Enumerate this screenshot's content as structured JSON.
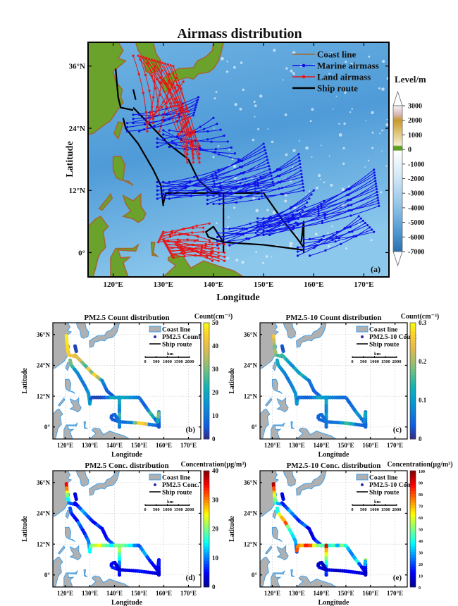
{
  "panel_a": {
    "title": "Airmass distribution",
    "xlabel": "Longitude",
    "ylabel": "Latitude",
    "label": "(a)",
    "x_ticks": [
      120,
      130,
      140,
      150,
      160,
      170
    ],
    "x_tick_labels": [
      "120°E",
      "130°E",
      "140°E",
      "150°E",
      "160°E",
      "170°E"
    ],
    "y_ticks": [
      36,
      24,
      12,
      0
    ],
    "y_tick_labels": [
      "36°N",
      "24°N",
      "12°N",
      "0°"
    ],
    "legend": [
      "Coast line",
      "Marine airmass",
      "Land airmass",
      "Ship route"
    ],
    "colorbar_title": "Level/m",
    "colorbar_ticks": [
      "3000",
      "2000",
      "1000",
      "0",
      "-1000",
      "-2000",
      "-3000",
      "-4000",
      "-5000",
      "-6000",
      "-7000"
    ],
    "colorbar_range": [
      -7000,
      3000
    ],
    "colors": {
      "marine": "#1010e8",
      "land": "#e81515",
      "route": "#000000",
      "coast": "#a0692e"
    },
    "airmass_bundles": [
      {
        "type": "marine",
        "from": [
          124,
          25
        ],
        "to": [
          [
            136,
            26.5
          ],
          [
            137,
            30
          ]
        ],
        "n": 8
      },
      {
        "type": "marine",
        "from": [
          130,
          22
        ],
        "to": [
          [
            140,
            26
          ],
          [
            145,
            18
          ]
        ],
        "n": 8
      },
      {
        "type": "marine",
        "from": [
          130,
          12
        ],
        "to": [
          [
            150,
            21
          ],
          [
            152,
            13
          ]
        ],
        "n": 14
      },
      {
        "type": "marine",
        "from": [
          140,
          11
        ],
        "to": [
          [
            157,
            19
          ],
          [
            158,
            12
          ]
        ],
        "n": 12
      },
      {
        "type": "marine",
        "from": [
          142,
          3
        ],
        "to": [
          [
            160,
            12
          ],
          [
            156,
            5
          ]
        ],
        "n": 10
      },
      {
        "type": "marine",
        "from": [
          150,
          5
        ],
        "to": [
          [
            172,
            16
          ],
          [
            173,
            9
          ]
        ],
        "n": 14
      },
      {
        "type": "marine",
        "from": [
          158,
          1
        ],
        "to": [
          [
            169,
            7
          ],
          [
            172,
            4
          ]
        ],
        "n": 8
      },
      {
        "type": "land",
        "from": [
          136,
          19
        ],
        "to": [
          [
            125,
            38
          ],
          [
            132,
            36
          ]
        ],
        "n": 14
      },
      {
        "type": "land",
        "from": [
          128,
          25
        ],
        "to": [
          [
            124,
            38
          ],
          [
            134,
            33
          ]
        ],
        "n": 8
      },
      {
        "type": "land",
        "from": [
          141,
          0
        ],
        "to": [
          [
            130,
            2.5
          ],
          [
            132,
            -1
          ]
        ],
        "n": 14
      },
      {
        "type": "land",
        "from": [
          138,
          4
        ],
        "to": [
          [
            129,
            2
          ],
          [
            130,
            4
          ]
        ],
        "n": 6
      }
    ]
  },
  "ship_route": [
    [
      [
        120.5,
        35.5
      ],
      [
        121,
        30
      ],
      [
        121.5,
        28
      ],
      [
        124,
        27.5
      ]
    ],
    [
      [
        124,
        31.5
      ],
      [
        124.5,
        29.5
      ]
    ],
    [
      [
        124,
        28
      ],
      [
        127,
        25
      ],
      [
        131,
        21
      ],
      [
        135,
        18
      ]
    ],
    [
      [
        135,
        18
      ],
      [
        137,
        14
      ],
      [
        140,
        11.5
      ]
    ],
    [
      [
        122,
        26
      ],
      [
        122.5,
        24
      ],
      [
        125,
        21
      ],
      [
        128,
        16
      ],
      [
        129.5,
        13
      ],
      [
        130,
        9
      ]
    ],
    [
      [
        130,
        9.5
      ],
      [
        130.5,
        11.5
      ],
      [
        142,
        11.5
      ]
    ],
    [
      [
        142,
        11.5
      ],
      [
        150,
        11.5
      ],
      [
        154,
        6
      ],
      [
        156.5,
        3
      ],
      [
        158,
        1
      ]
    ],
    [
      [
        142,
        11.5
      ],
      [
        142,
        0
      ]
    ],
    [
      [
        158,
        0.5
      ],
      [
        150,
        1.5
      ],
      [
        142,
        2
      ],
      [
        139,
        3
      ],
      [
        138.5,
        4
      ],
      [
        140,
        5
      ],
      [
        141,
        3.5
      ],
      [
        142,
        2
      ]
    ],
    [
      [
        158,
        0
      ],
      [
        158,
        6
      ],
      [
        157.5,
        2
      ]
    ]
  ],
  "scale_bar": {
    "unit": "km",
    "labels": [
      "0",
      "500",
      "1000",
      "1500",
      "2000"
    ]
  },
  "small_panels": [
    {
      "id": "b",
      "title": "PM2.5 Count distribution",
      "label": "(b)",
      "cb_title": "Count(cm⁻³)",
      "cmap": "parula",
      "legend": [
        "Coast line",
        "PM2.5 Count",
        "Ship route"
      ],
      "range": [
        0,
        50
      ],
      "cb_ticks": [
        "50",
        "40",
        "30",
        "20",
        "10",
        "0"
      ],
      "values": [
        [
          48,
          48,
          47,
          46,
          45,
          44,
          42,
          40
        ],
        [
          3,
          2,
          3
        ],
        [
          40,
          38,
          30,
          25,
          42,
          30,
          45,
          35,
          25
        ],
        [
          12,
          8,
          6,
          5,
          4
        ],
        [
          30,
          25,
          15,
          12,
          12,
          10,
          12,
          15,
          18,
          20
        ],
        [
          15,
          5,
          3,
          3,
          5,
          12,
          20,
          18,
          15
        ],
        [
          20,
          18,
          15,
          12,
          10,
          8,
          6,
          12,
          25,
          20,
          8,
          5
        ],
        [
          18,
          20,
          15,
          12,
          25,
          20,
          15,
          10
        ],
        [
          8,
          10,
          40,
          45,
          30,
          12,
          8,
          6,
          5,
          5,
          8,
          10
        ],
        [
          5,
          8,
          12,
          30,
          20
        ]
      ]
    },
    {
      "id": "c",
      "title": "PM2.5-10 Count distribution",
      "label": "(c)",
      "cb_title": "Count(cm⁻³)",
      "cmap": "parula",
      "legend": [
        "Coast line",
        "PM2.5-10 Count",
        "Ship route"
      ],
      "range": [
        0,
        0.3
      ],
      "cb_ticks": [
        "0.3",
        "0.2",
        "0.1",
        "0"
      ],
      "values": [
        [
          0.25,
          0.22,
          0.2,
          0.18,
          0.2,
          0.18,
          0.15,
          0.12
        ],
        [
          0.03,
          0.02,
          0.03
        ],
        [
          0.15,
          0.12,
          0.1,
          0.08,
          0.12,
          0.1,
          0.14,
          0.1,
          0.08
        ],
        [
          0.06,
          0.05,
          0.04,
          0.04,
          0.05
        ],
        [
          0.12,
          0.1,
          0.08,
          0.07,
          0.06,
          0.07,
          0.08,
          0.09,
          0.1,
          0.08
        ],
        [
          0.1,
          0.06,
          0.05,
          0.04,
          0.05,
          0.08,
          0.12,
          0.1,
          0.08
        ],
        [
          0.08,
          0.07,
          0.06,
          0.05,
          0.05,
          0.04,
          0.05,
          0.06,
          0.1,
          0.08,
          0.05,
          0.04
        ],
        [
          0.1,
          0.12,
          0.08,
          0.07,
          0.1,
          0.08,
          0.06,
          0.05
        ],
        [
          0.04,
          0.05,
          0.12,
          0.15,
          0.1,
          0.06,
          0.05,
          0.04,
          0.04,
          0.04,
          0.05,
          0.06
        ],
        [
          0.04,
          0.05,
          0.06,
          0.12,
          0.08
        ]
      ]
    },
    {
      "id": "d",
      "title": "PM2.5 Conc. distribution",
      "label": "(d)",
      "cb_title": "Concentration(μg/m³)",
      "cmap": "jet",
      "legend": [
        "Coast line",
        "PM2.5 Conc.",
        "Ship route"
      ],
      "range": [
        0,
        40
      ],
      "cb_ticks": [
        "40",
        "30",
        "20",
        "10",
        "0"
      ],
      "values": [
        [
          35,
          30,
          25,
          20,
          15,
          10,
          8,
          5
        ],
        [
          3,
          4,
          3
        ],
        [
          5,
          8,
          12,
          10,
          8,
          6,
          5,
          8,
          6
        ],
        [
          5,
          4,
          6,
          8,
          10
        ],
        [
          8,
          6,
          5,
          10,
          8,
          6,
          8,
          10,
          12,
          15
        ],
        [
          15,
          20,
          22,
          25,
          20,
          18,
          15,
          20,
          22
        ],
        [
          20,
          18,
          15,
          10,
          8,
          10,
          12,
          8,
          6,
          5,
          4,
          3
        ],
        [
          20,
          22,
          18,
          15,
          10,
          8,
          6,
          5
        ],
        [
          3,
          4,
          5,
          6,
          5,
          4,
          3,
          5,
          6,
          4,
          3,
          3
        ],
        [
          3,
          4,
          5,
          6,
          4
        ]
      ]
    },
    {
      "id": "e",
      "title": "PM2.5-10 Conc. distribution",
      "label": "(e)",
      "cb_title": "Concentration(μg/m³)",
      "cmap": "jet",
      "legend": [
        "Coast line",
        "PM2.5-10 Conc.",
        "Ship route"
      ],
      "range": [
        0,
        100
      ],
      "cb_ticks": [
        "100",
        "90",
        "80",
        "70",
        "60",
        "50",
        "40",
        "30",
        "20",
        "10",
        "0"
      ],
      "values": [
        [
          95,
          80,
          70,
          60,
          50,
          40,
          30,
          40
        ],
        [
          10,
          8,
          10
        ],
        [
          15,
          20,
          30,
          25,
          20,
          15,
          20,
          25,
          10
        ],
        [
          10,
          8,
          12,
          20,
          15
        ],
        [
          40,
          60,
          70,
          80,
          50,
          40,
          35,
          30,
          25,
          20
        ],
        [
          80,
          75,
          70,
          85,
          80,
          60,
          50,
          45,
          40
        ],
        [
          40,
          45,
          30,
          50,
          40,
          30,
          25,
          30,
          40,
          20,
          10,
          5
        ],
        [
          90,
          70,
          60,
          50,
          40,
          30,
          20,
          15
        ],
        [
          10,
          8,
          12,
          10,
          8,
          5,
          10,
          12,
          8,
          6,
          5,
          5
        ],
        [
          5,
          10,
          55,
          30,
          10
        ]
      ]
    }
  ],
  "small_axes": {
    "xlabel": "Longitude",
    "ylabel": "Latitude",
    "x_ticks": [
      120,
      130,
      140,
      150,
      160,
      170
    ],
    "x_tick_labels": [
      "120°E",
      "130°E",
      "140°E",
      "150°E",
      "160°E",
      "170°E"
    ],
    "y_ticks": [
      36,
      24,
      12,
      0
    ],
    "y_tick_labels": [
      "36°N",
      "24°N",
      "12°N",
      "0°"
    ]
  }
}
